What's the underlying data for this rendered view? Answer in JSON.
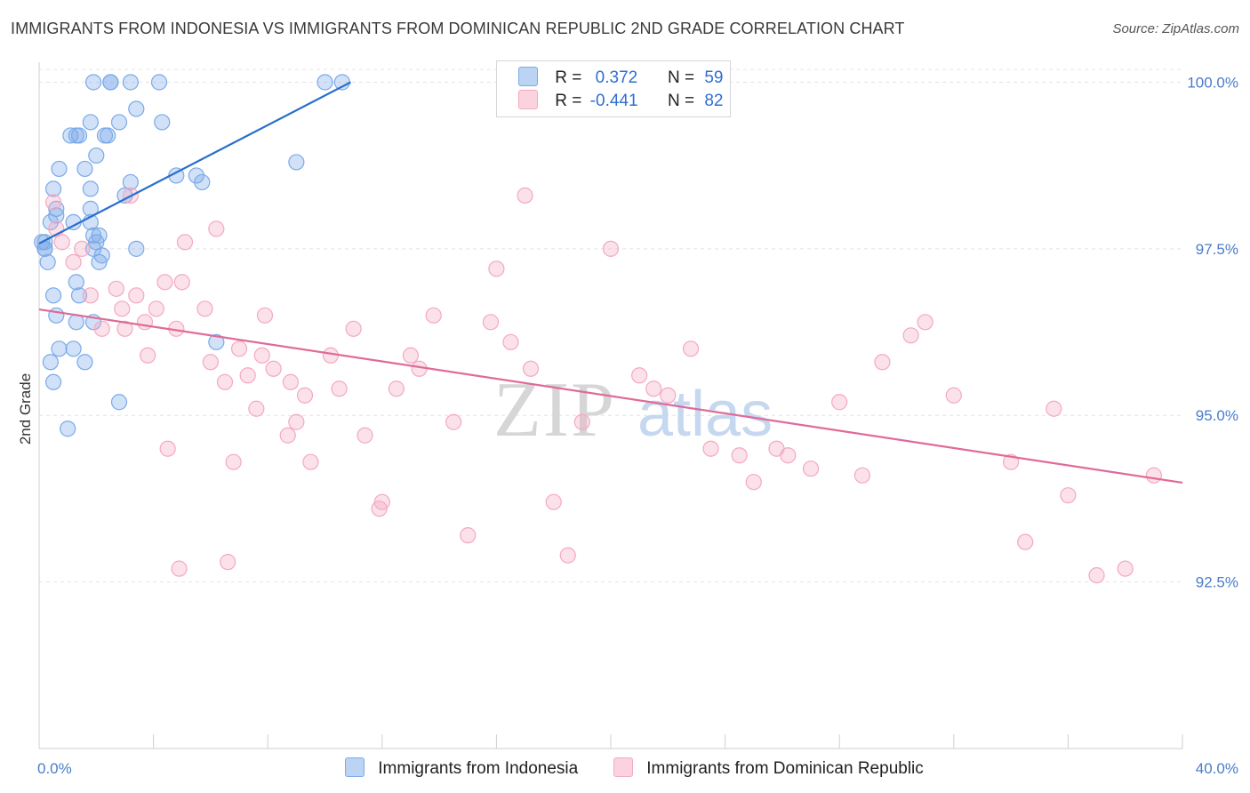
{
  "title": "IMMIGRANTS FROM INDONESIA VS IMMIGRANTS FROM DOMINICAN REPUBLIC 2ND GRADE CORRELATION CHART",
  "source": "Source: ZipAtlas.com",
  "watermark": {
    "zip": "ZIP",
    "atlas": "atlas"
  },
  "legend": {
    "rows": [
      {
        "r_label": "R =",
        "r_value": "0.372",
        "n_label": "N =",
        "n_value": "59"
      },
      {
        "r_label": "R =",
        "r_value": "-0.441",
        "n_label": "N =",
        "n_value": "82"
      }
    ]
  },
  "chart_data": {
    "type": "scatter",
    "title": "IMMIGRANTS FROM INDONESIA VS IMMIGRANTS FROM DOMINICAN REPUBLIC 2ND GRADE CORRELATION CHART",
    "xlabel": "",
    "ylabel": "2nd Grade",
    "xlim": [
      0,
      40
    ],
    "ylim": [
      90.0,
      100.3
    ],
    "x_tick_labels": [
      {
        "value": 0,
        "label": "0.0%"
      },
      {
        "value": 40,
        "label": "40.0%"
      }
    ],
    "y_tick_labels": [
      {
        "value": 100.0,
        "label": "100.0%"
      },
      {
        "value": 97.5,
        "label": "97.5%"
      },
      {
        "value": 95.0,
        "label": "95.0%"
      },
      {
        "value": 92.5,
        "label": "92.5%"
      }
    ],
    "grid": true,
    "legend_position": "top-center",
    "series": [
      {
        "name": "Immigrants from Indonesia",
        "color": "#7aaae8",
        "line_color": "#2a6fcc",
        "trend": {
          "x": [
            0.0,
            10.9
          ],
          "y": [
            97.58,
            100.0
          ]
        },
        "x": [
          1.9,
          2.5,
          2.5,
          3.2,
          4.2,
          10.0,
          10.6,
          3.4,
          1.8,
          2.8,
          4.3,
          1.1,
          1.4,
          1.3,
          2.3,
          2.4,
          2.0,
          1.6,
          0.7,
          0.5,
          1.8,
          3.0,
          4.8,
          5.7,
          0.6,
          0.6,
          0.4,
          1.2,
          1.8,
          1.8,
          1.9,
          2.1,
          2.0,
          3.4,
          0.2,
          0.1,
          0.2,
          1.9,
          2.2,
          2.1,
          1.3,
          0.5,
          1.4,
          1.9,
          0.6,
          1.2,
          6.2,
          0.4,
          0.5,
          1.6,
          0.7,
          2.8,
          1.0,
          9.0,
          3.2,
          5.5,
          0.3,
          0.2,
          1.3
        ],
        "y": [
          100.0,
          100.0,
          100.0,
          100.0,
          100.0,
          100.0,
          100.0,
          99.6,
          99.4,
          99.4,
          99.4,
          99.2,
          99.2,
          99.2,
          99.2,
          99.2,
          98.9,
          98.7,
          98.7,
          98.4,
          98.4,
          98.3,
          98.6,
          98.5,
          98.1,
          98.0,
          97.9,
          97.9,
          97.9,
          98.1,
          97.7,
          97.7,
          97.6,
          97.5,
          97.6,
          97.6,
          97.5,
          97.5,
          97.4,
          97.3,
          97.0,
          96.8,
          96.8,
          96.4,
          96.5,
          96.0,
          96.1,
          95.8,
          95.5,
          95.8,
          96.0,
          95.2,
          94.8,
          98.8,
          98.5,
          98.6,
          97.3,
          97.5,
          96.4
        ]
      },
      {
        "name": "Immigrants from Dominican Republic",
        "color": "#f4a9c0",
        "line_color": "#e06a99",
        "trend": {
          "x": [
            0.0,
            40.0
          ],
          "y": [
            96.59,
            93.99
          ]
        },
        "x": [
          0.5,
          0.6,
          0.8,
          1.2,
          1.5,
          1.8,
          2.2,
          2.7,
          2.9,
          3.0,
          3.4,
          3.7,
          3.8,
          4.1,
          4.4,
          4.5,
          4.8,
          5.0,
          5.1,
          5.8,
          6.0,
          6.2,
          6.5,
          6.8,
          7.0,
          7.3,
          7.6,
          7.8,
          8.2,
          8.7,
          9.0,
          9.3,
          9.5,
          10.2,
          10.5,
          11.0,
          11.4,
          12.0,
          12.5,
          13.0,
          13.3,
          13.8,
          14.5,
          15.0,
          15.8,
          16.0,
          16.5,
          17.2,
          18.0,
          18.5,
          19.0,
          20.0,
          21.0,
          21.5,
          22.0,
          22.8,
          23.5,
          24.5,
          25.0,
          25.8,
          26.2,
          27.0,
          28.0,
          28.8,
          29.5,
          30.5,
          31.0,
          32.0,
          34.0,
          34.5,
          35.5,
          36.0,
          37.0,
          38.0,
          39.0,
          4.9,
          6.6,
          3.2,
          7.9,
          17.0,
          11.9,
          8.8
        ],
        "y": [
          98.2,
          97.8,
          97.6,
          97.3,
          97.5,
          96.8,
          96.3,
          96.9,
          96.6,
          96.3,
          96.8,
          96.4,
          95.9,
          96.6,
          97.0,
          94.5,
          96.3,
          97.0,
          97.6,
          96.6,
          95.8,
          97.8,
          95.5,
          94.3,
          96.0,
          95.6,
          95.1,
          95.9,
          95.7,
          94.7,
          94.9,
          95.3,
          94.3,
          95.9,
          95.4,
          96.3,
          94.7,
          93.7,
          95.4,
          95.9,
          95.7,
          96.5,
          94.9,
          93.2,
          96.4,
          97.2,
          96.1,
          95.7,
          93.7,
          92.9,
          94.9,
          97.5,
          95.6,
          95.4,
          95.3,
          96.0,
          94.5,
          94.4,
          94.0,
          94.5,
          94.4,
          94.2,
          95.2,
          94.1,
          95.8,
          96.2,
          96.4,
          95.3,
          94.3,
          93.1,
          95.1,
          93.8,
          92.6,
          92.7,
          94.1,
          92.7,
          92.8,
          98.3,
          96.5,
          98.3,
          93.6,
          95.5
        ]
      }
    ]
  }
}
